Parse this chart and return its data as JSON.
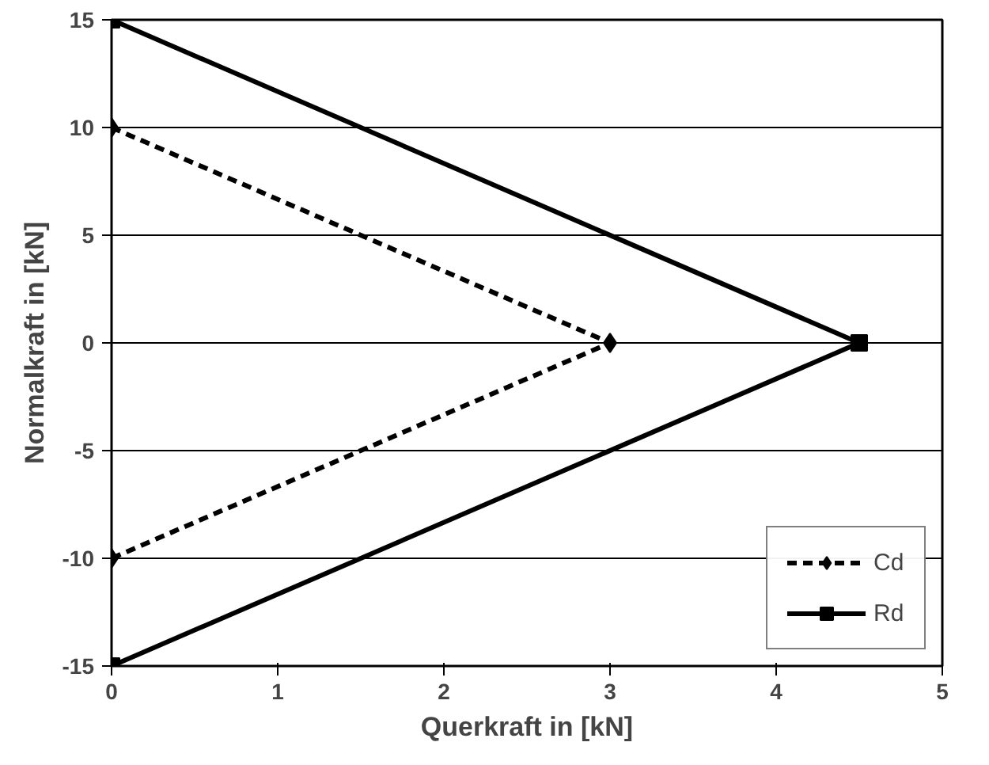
{
  "chart_data": {
    "type": "line",
    "xlabel": "Querkraft in [kN]",
    "ylabel": "Normalkraft in [kN]",
    "xlim": [
      0,
      5
    ],
    "xticks": [
      0,
      1,
      2,
      3,
      4,
      5
    ],
    "ylim": [
      -15,
      15
    ],
    "yticks": [
      -15,
      -10,
      -5,
      0,
      5,
      10,
      15
    ],
    "grid": "y",
    "legend": "bottom right",
    "series": [
      {
        "name": "Cd",
        "color": "#000000",
        "x": [
          0,
          3,
          0
        ],
        "values": [
          10,
          0,
          -10
        ],
        "marker": "diamond",
        "line_style": "dashed"
      },
      {
        "name": "Rd",
        "color": "#000000",
        "x": [
          0,
          4.5,
          0
        ],
        "values": [
          15,
          0,
          -15
        ],
        "marker": "square",
        "line_style": "solid"
      }
    ]
  }
}
